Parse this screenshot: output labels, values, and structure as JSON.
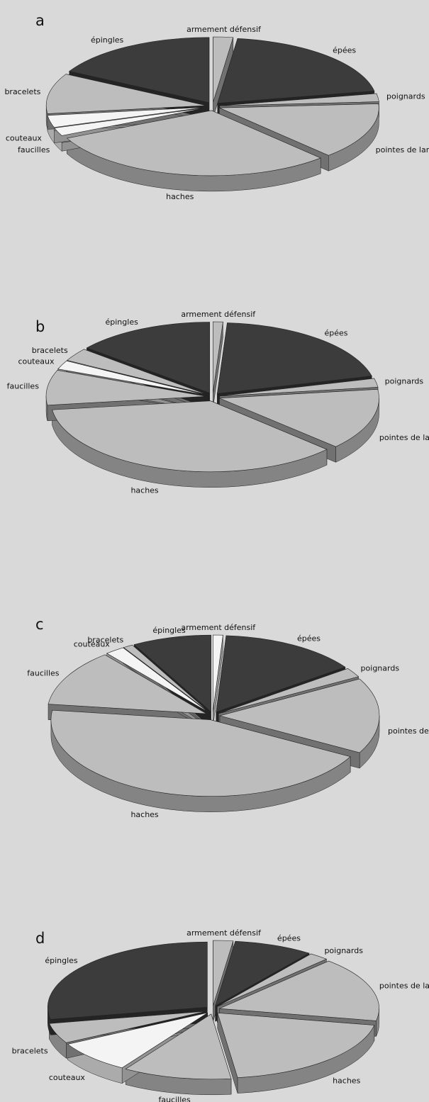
{
  "chart_data": [
    {
      "type": "pie",
      "title": "a",
      "categories": [
        "armement défensif",
        "épées",
        "poignards",
        "pointes de lance",
        "haches",
        "faucilles",
        "couteaux",
        "bracelets",
        "épingles"
      ],
      "values": [
        2,
        20,
        2,
        14,
        30,
        2,
        3,
        10,
        17
      ],
      "colors": [
        "#bdbdbd",
        "#3c3c3c",
        "#bdbdbd",
        "#bdbdbd",
        "#bdbdbd",
        "#f4f4f4",
        "#f4f4f4",
        "#bdbdbd",
        "#3c3c3c"
      ]
    },
    {
      "type": "pie",
      "title": "b",
      "categories": [
        "armement défensif",
        "épées",
        "poignards",
        "pointes de lance",
        "haches",
        "faucilles",
        "couteaux",
        "bracelets",
        "épingles"
      ],
      "values": [
        1,
        20,
        2,
        14,
        36,
        8,
        2,
        3,
        14
      ],
      "colors": [
        "#bdbdbd",
        "#3c3c3c",
        "#bdbdbd",
        "#bdbdbd",
        "#bdbdbd",
        "#bdbdbd",
        "#f4f4f4",
        "#bdbdbd",
        "#3c3c3c"
      ]
    },
    {
      "type": "pie",
      "title": "c",
      "categories": [
        "armement défensif",
        "épées",
        "poignards",
        "pointes de lance",
        "haches",
        "faucilles",
        "couteaux",
        "bracelets",
        "épingles"
      ],
      "values": [
        1,
        14,
        2,
        16,
        44,
        12,
        2,
        1,
        8
      ],
      "colors": [
        "#f4f4f4",
        "#3c3c3c",
        "#bdbdbd",
        "#bdbdbd",
        "#bdbdbd",
        "#bdbdbd",
        "#f4f4f4",
        "#bdbdbd",
        "#3c3c3c"
      ]
    },
    {
      "type": "pie",
      "title": "d",
      "categories": [
        "armement défensif",
        "épées",
        "poignards",
        "pointes de lance",
        "haches",
        "faucilles",
        "couteaux",
        "bracelets",
        "épingles"
      ],
      "values": [
        2,
        8,
        2,
        16,
        20,
        11,
        8,
        5,
        28
      ],
      "colors": [
        "#bdbdbd",
        "#3c3c3c",
        "#bdbdbd",
        "#bdbdbd",
        "#bdbdbd",
        "#bdbdbd",
        "#f4f4f4",
        "#bdbdbd",
        "#3c3c3c"
      ]
    }
  ]
}
